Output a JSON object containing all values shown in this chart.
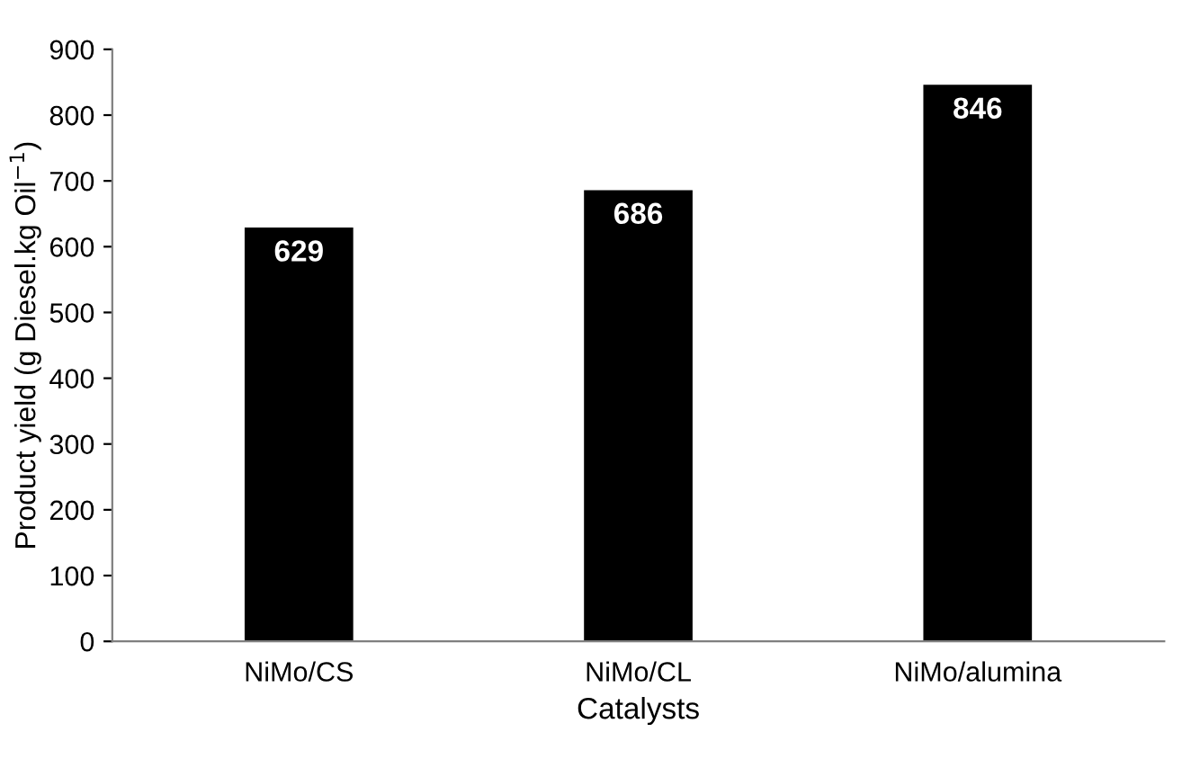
{
  "chart_data": {
    "type": "bar",
    "xlabel": "Catalysts",
    "ylabel": "Product yield (g Diesel.kg Oil$^{−1}$)",
    "categories": [
      "NiMo/CS",
      "NiMo/CL",
      "NiMo/alumina"
    ],
    "values": [
      629,
      686,
      846
    ],
    "color": "#000000",
    "ylim": [
      0,
      900
    ],
    "yticks": [
      0,
      100,
      200,
      300,
      400,
      500,
      600,
      700,
      800,
      900
    ],
    "data_labels": true,
    "grid": false,
    "legend": false
  }
}
